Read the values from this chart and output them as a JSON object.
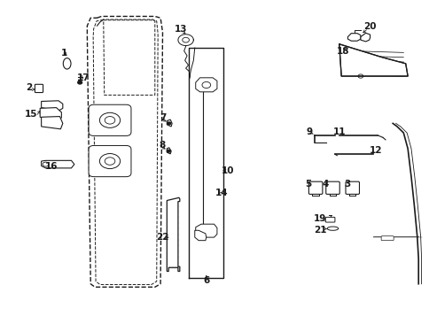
{
  "bg_color": "#ffffff",
  "line_color": "#1a1a1a",
  "figsize": [
    4.85,
    3.57
  ],
  "dpi": 100,
  "door_outer": {
    "x": [
      0.215,
      0.215,
      0.19,
      0.185,
      0.195,
      0.215,
      0.36,
      0.375,
      0.378,
      0.37,
      0.355,
      0.215
    ],
    "y": [
      0.94,
      0.94,
      0.91,
      0.13,
      0.095,
      0.08,
      0.08,
      0.095,
      0.13,
      0.91,
      0.94,
      0.94
    ]
  },
  "door_inner": {
    "x": [
      0.23,
      0.23,
      0.21,
      0.205,
      0.215,
      0.235,
      0.345,
      0.358,
      0.36,
      0.35,
      0.34,
      0.23
    ],
    "y": [
      0.93,
      0.93,
      0.9,
      0.15,
      0.115,
      0.1,
      0.1,
      0.115,
      0.15,
      0.9,
      0.93,
      0.93
    ]
  }
}
